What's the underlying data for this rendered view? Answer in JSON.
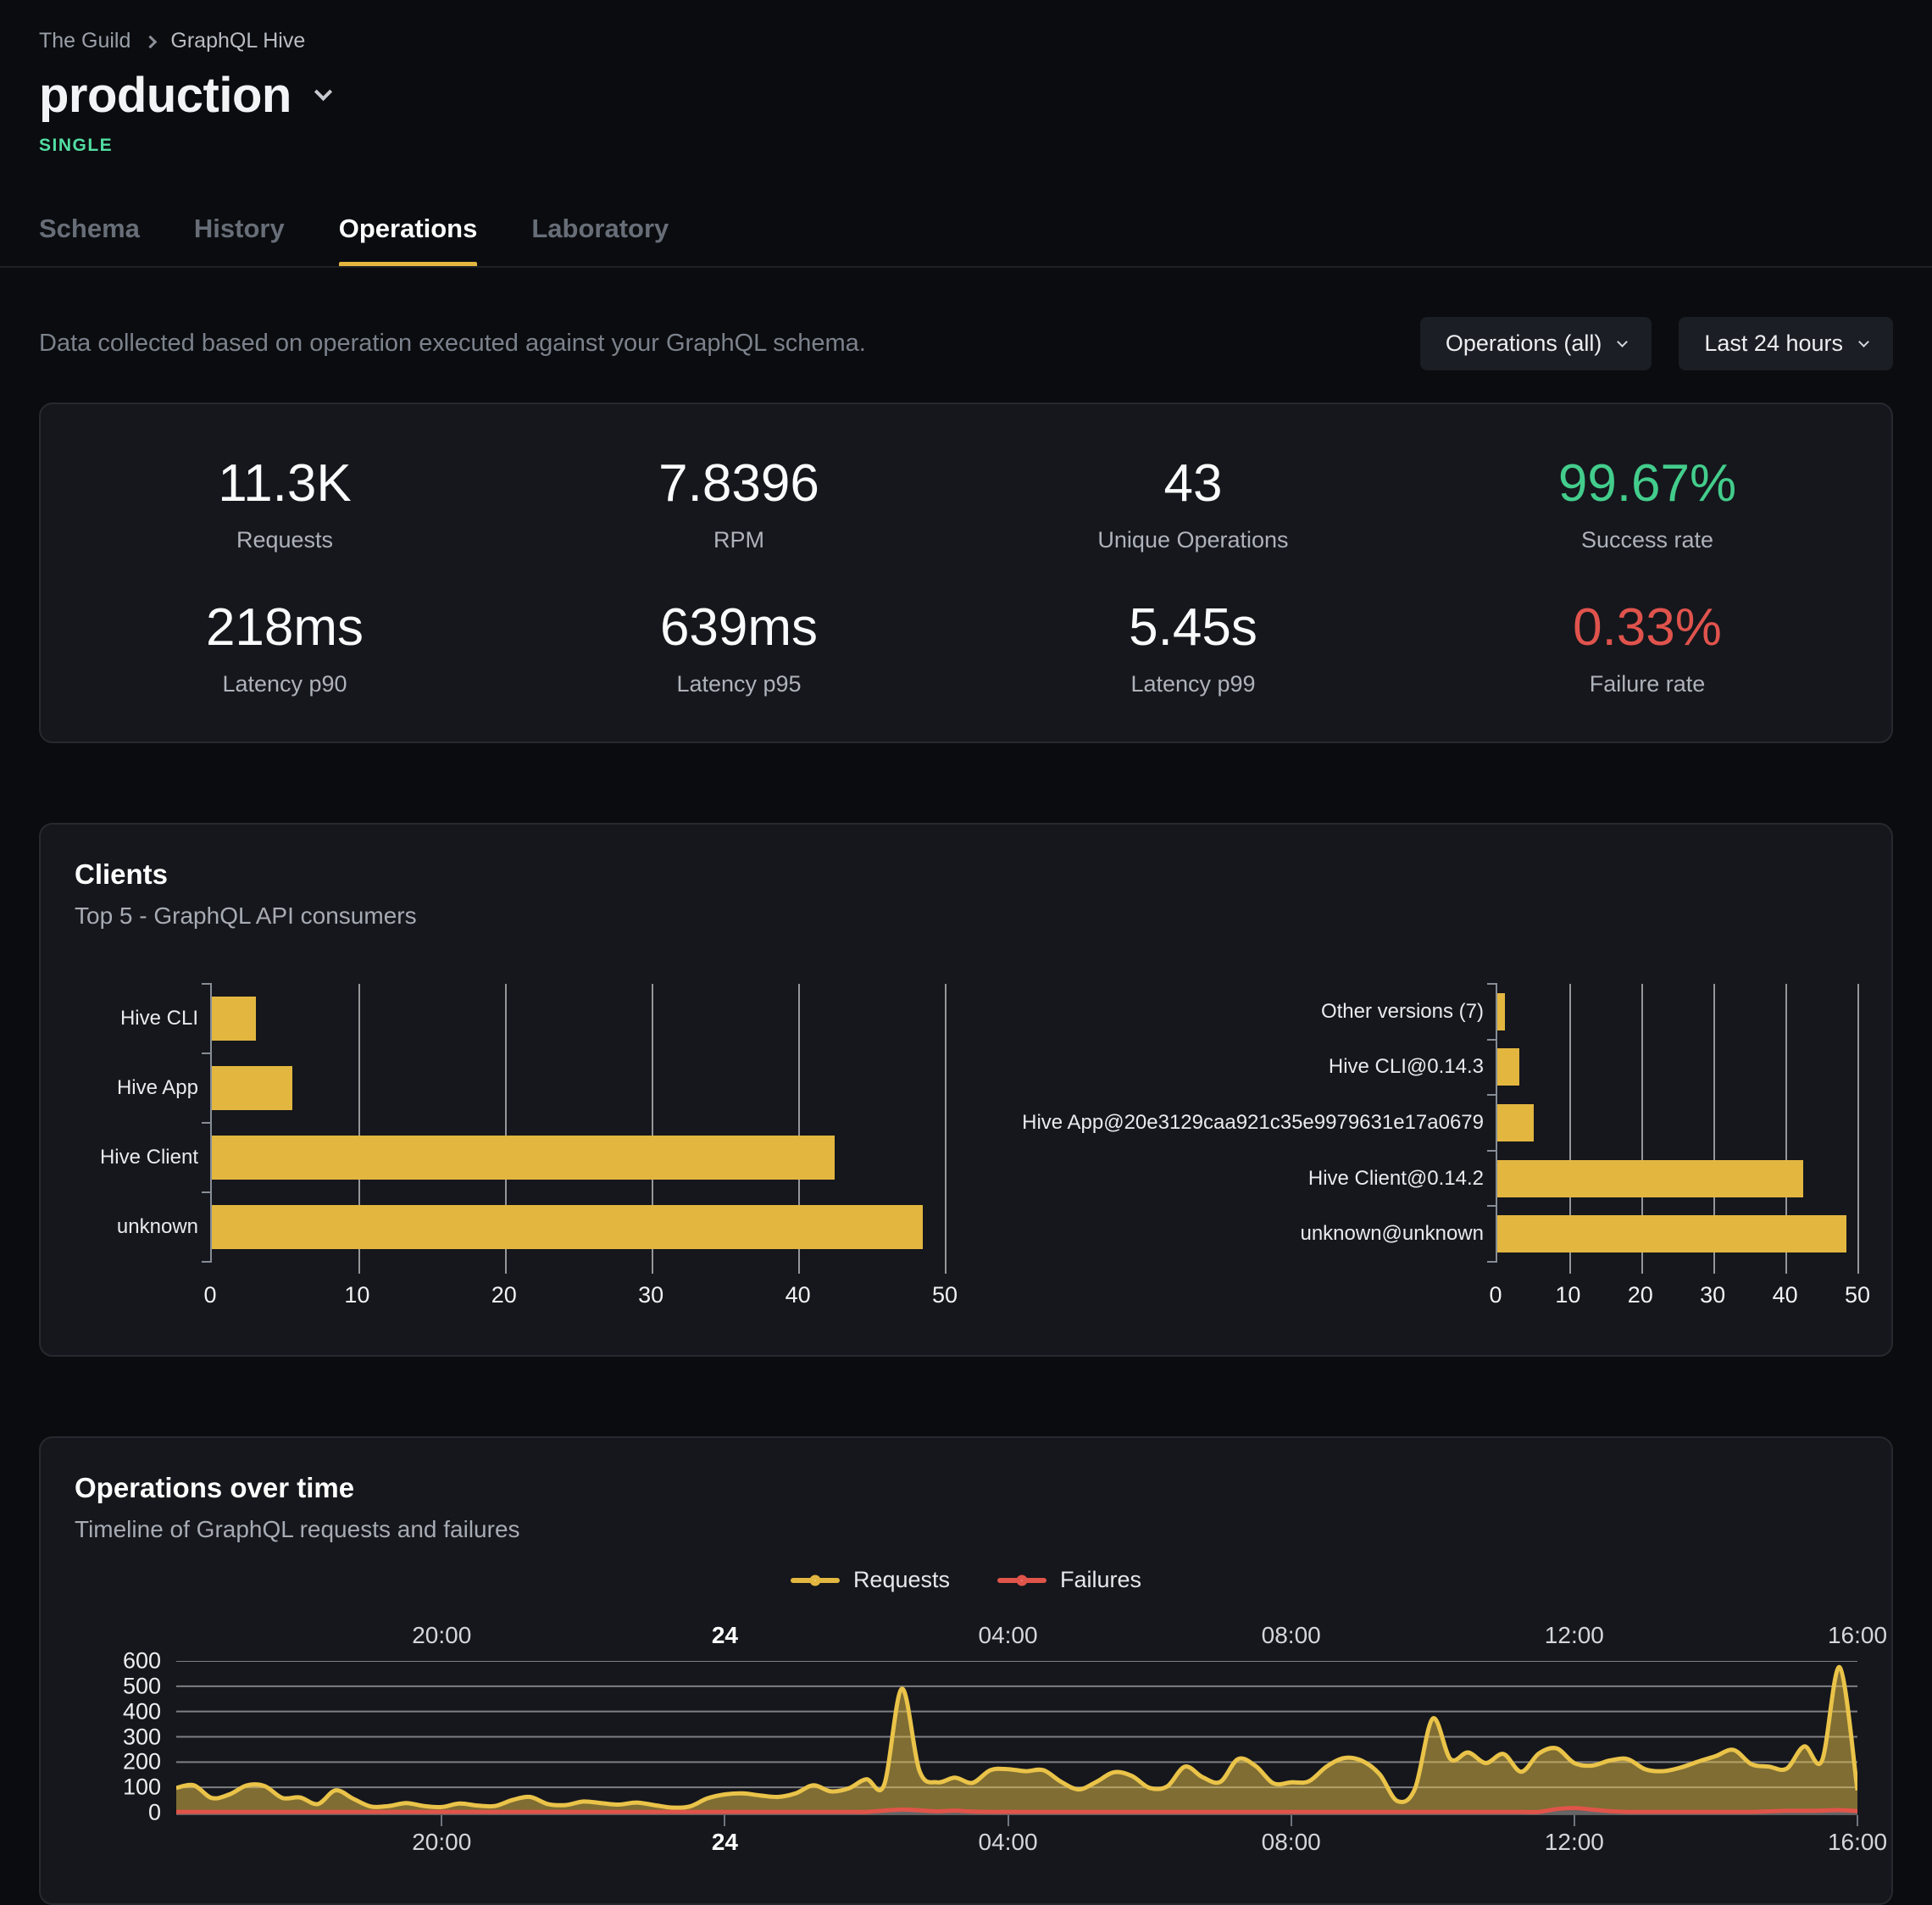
{
  "breadcrumb": {
    "org": "The Guild",
    "project": "GraphQL Hive"
  },
  "header": {
    "title": "production",
    "badge": "SINGLE"
  },
  "tabs": [
    {
      "label": "Schema",
      "active": false
    },
    {
      "label": "History",
      "active": false
    },
    {
      "label": "Operations",
      "active": true
    },
    {
      "label": "Laboratory",
      "active": false
    }
  ],
  "filters": {
    "description": "Data collected based on operation executed against your GraphQL schema.",
    "operations_dropdown": "Operations (all)",
    "time_range_dropdown": "Last 24 hours"
  },
  "stats": [
    {
      "value": "11.3K",
      "label": "Requests",
      "tone": "default"
    },
    {
      "value": "7.8396",
      "label": "RPM",
      "tone": "default"
    },
    {
      "value": "43",
      "label": "Unique Operations",
      "tone": "default"
    },
    {
      "value": "99.67%",
      "label": "Success rate",
      "tone": "success"
    },
    {
      "value": "218ms",
      "label": "Latency p90",
      "tone": "default"
    },
    {
      "value": "639ms",
      "label": "Latency p95",
      "tone": "default"
    },
    {
      "value": "5.45s",
      "label": "Latency p99",
      "tone": "default"
    },
    {
      "value": "0.33%",
      "label": "Failure rate",
      "tone": "danger"
    }
  ],
  "clients_card": {
    "title": "Clients",
    "subtitle": "Top 5 - GraphQL API consumers"
  },
  "operations_card": {
    "title": "Operations over time",
    "subtitle": "Timeline of GraphQL requests and failures",
    "legend": [
      {
        "label": "Requests",
        "color": "#e3b640"
      },
      {
        "label": "Failures",
        "color": "#e0544a"
      }
    ]
  },
  "colors": {
    "accent_gold": "#e3b640",
    "requests_line": "#eac349",
    "requests_fill": "rgba(233,195,73,0.5)",
    "failures_line": "#e0544a",
    "failures_fill": "rgba(90,94,106,0.85)",
    "success_green": "#43cd8c",
    "failure_red": "#e0534d",
    "badge_teal": "#52dda2",
    "gridline": "rgba(255,255,255,0.45)"
  },
  "chart_data": [
    {
      "id": "clients_by_name",
      "type": "bar",
      "orientation": "horizontal",
      "title": "Top clients by name",
      "categories": [
        "Hive CLI",
        "Hive App",
        "Hive Client",
        "unknown"
      ],
      "values": [
        3,
        5.5,
        42.5,
        48.5
      ],
      "xlim": [
        0,
        50
      ],
      "xticks": [
        0,
        10,
        20,
        30,
        40,
        50
      ],
      "bar_color": "#e3b640"
    },
    {
      "id": "clients_by_version",
      "type": "bar",
      "orientation": "horizontal",
      "title": "Top clients by version",
      "categories": [
        "Other versions (7)",
        "Hive CLI@0.14.3",
        "Hive App@20e3129caa921c35e9979631e17a0679",
        "Hive Client@0.14.2",
        "unknown@unknown"
      ],
      "values": [
        1,
        3,
        5,
        42.5,
        48.5
      ],
      "xlim": [
        0,
        50
      ],
      "xticks": [
        0,
        10,
        20,
        30,
        40,
        50
      ],
      "bar_color": "#e3b640"
    },
    {
      "id": "operations_over_time",
      "type": "area",
      "title": "Operations over time",
      "ylim": [
        0,
        600
      ],
      "yticks": [
        0,
        100,
        200,
        300,
        400,
        500,
        600
      ],
      "x_labels": [
        {
          "text": "20:00",
          "index": 15,
          "bold": false
        },
        {
          "text": "24",
          "index": 31,
          "bold": true
        },
        {
          "text": "04:00",
          "index": 47,
          "bold": false
        },
        {
          "text": "08:00",
          "index": 63,
          "bold": false
        },
        {
          "text": "12:00",
          "index": 79,
          "bold": false
        },
        {
          "text": "16:00",
          "index": 95,
          "bold": false
        }
      ],
      "series": [
        {
          "name": "Requests",
          "color": "#eac349",
          "values": [
            98,
            108,
            58,
            72,
            108,
            105,
            58,
            60,
            34,
            88,
            55,
            24,
            26,
            38,
            26,
            22,
            36,
            28,
            26,
            50,
            62,
            34,
            30,
            44,
            38,
            32,
            40,
            30,
            20,
            24,
            56,
            72,
            76,
            68,
            62,
            76,
            108,
            84,
            96,
            132,
            110,
            490,
            165,
            120,
            138,
            118,
            168,
            172,
            164,
            168,
            122,
            92,
            122,
            160,
            145,
            98,
            104,
            182,
            140,
            122,
            212,
            184,
            116,
            120,
            124,
            182,
            216,
            205,
            152,
            46,
            95,
            372,
            212,
            238,
            196,
            232,
            162,
            234,
            254,
            196,
            186,
            206,
            212,
            172,
            164,
            178,
            202,
            224,
            248,
            192,
            182,
            174,
            262,
            206,
            575,
            88
          ]
        },
        {
          "name": "Failures",
          "color": "#e0544a",
          "values": [
            3,
            3,
            3,
            3,
            3,
            3,
            3,
            3,
            3,
            3,
            3,
            3,
            3,
            3,
            3,
            3,
            3,
            3,
            3,
            3,
            3,
            3,
            3,
            3,
            3,
            3,
            3,
            3,
            3,
            3,
            3,
            3,
            3,
            3,
            3,
            3,
            3,
            3,
            3,
            3,
            8,
            12,
            9,
            5,
            8,
            4,
            3,
            3,
            3,
            3,
            3,
            3,
            3,
            3,
            3,
            3,
            3,
            3,
            3,
            3,
            3,
            3,
            3,
            3,
            3,
            3,
            3,
            3,
            3,
            3,
            3,
            3,
            3,
            3,
            3,
            3,
            3,
            3,
            14,
            18,
            12,
            6,
            3,
            3,
            3,
            3,
            3,
            3,
            3,
            3,
            5,
            7,
            7,
            8,
            10,
            6
          ]
        }
      ]
    }
  ]
}
